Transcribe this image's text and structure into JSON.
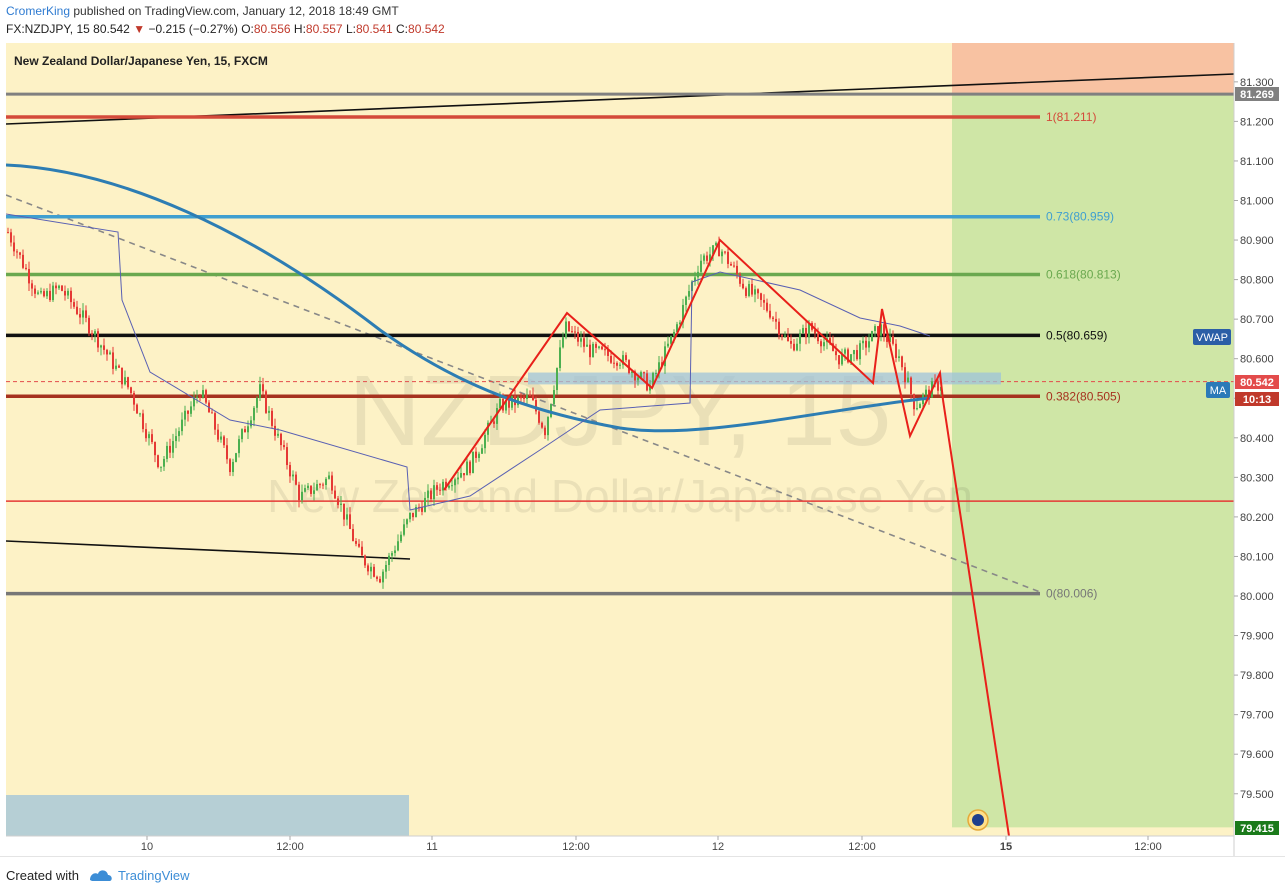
{
  "header": {
    "author": "CromerKing",
    "published_text": "published on TradingView.com, January 12, 2018 18:49 GMT",
    "symbol": "FX:NZDJPY, 15",
    "last": "80.542",
    "change_arrow": "▼",
    "change": "−0.215 (−0.27%)",
    "o_label": "O:",
    "o_value": "80.556",
    "h_label": "H:",
    "h_value": "80.557",
    "l_label": "L:",
    "l_value": "80.541",
    "c_label": "C:",
    "c_value": "80.542"
  },
  "legend": {
    "title": "New Zealand Dollar/Japanese Yen, 15, FXCM"
  },
  "watermark": {
    "symbol": "NZDJPY, 15",
    "name": "New Zealand Dollar/Japanese Yen"
  },
  "chart_data": {
    "type": "candlestick",
    "y_axis": {
      "ticks": [
        "81.300",
        "81.200",
        "81.100",
        "81.000",
        "80.900",
        "80.800",
        "80.700",
        "80.600",
        "80.500",
        "80.400",
        "80.300",
        "80.200",
        "80.100",
        "80.000",
        "79.900",
        "79.800",
        "79.700",
        "79.600",
        "79.500"
      ],
      "range": [
        79.4,
        81.42
      ]
    },
    "x_axis": {
      "ticks": [
        "10",
        "12:00",
        "11",
        "12:00",
        "12",
        "12:00",
        "15",
        "12:00"
      ]
    },
    "fibonacci": [
      {
        "label": "1(81.211)",
        "level": 81.211,
        "color": "#d44a3a"
      },
      {
        "label": "0.73(80.959)",
        "level": 80.959,
        "color": "#3f9fd0"
      },
      {
        "label": "0.618(80.813)",
        "level": 80.813,
        "color": "#6aa84f"
      },
      {
        "label": "0.5(80.659)",
        "level": 80.659,
        "color": "#111111"
      },
      {
        "label": "0.382(80.505)",
        "level": 80.505,
        "color": "#a6321f"
      },
      {
        "label": "0(80.006)",
        "level": 80.006,
        "color": "#777777"
      }
    ],
    "price_labels": [
      {
        "text": "81.269",
        "value": 81.269,
        "bg": "#808080",
        "color": "#ffffff"
      },
      {
        "text": "80.542",
        "value": 80.542,
        "bg": "#e34b4b",
        "color": "#ffffff"
      },
      {
        "text": "10:13",
        "value": 80.5,
        "bg": "#c0392b",
        "color": "#ffffff"
      },
      {
        "text": "79.415",
        "value": 79.415,
        "bg": "#1a7a1a",
        "color": "#ffffff"
      }
    ],
    "indicator_tags": [
      {
        "text": "VWAP",
        "value": 80.659,
        "bg": "#2b5ea6"
      },
      {
        "text": "MA",
        "value": 80.525,
        "bg": "#2b7ab8"
      }
    ],
    "annotations": {
      "last_price": 80.542,
      "red_horizontal": 80.24,
      "target_price": 79.415
    },
    "colors": {
      "background": "#fdf2c6",
      "up": "#4caf50",
      "down": "#e53935",
      "ma": "#2d7db3",
      "vwap": "#5960b3",
      "pattern": "#e8201a",
      "profit_zone": "#cfe6a6",
      "stop_zone": "#f8c2a2"
    }
  }
}
